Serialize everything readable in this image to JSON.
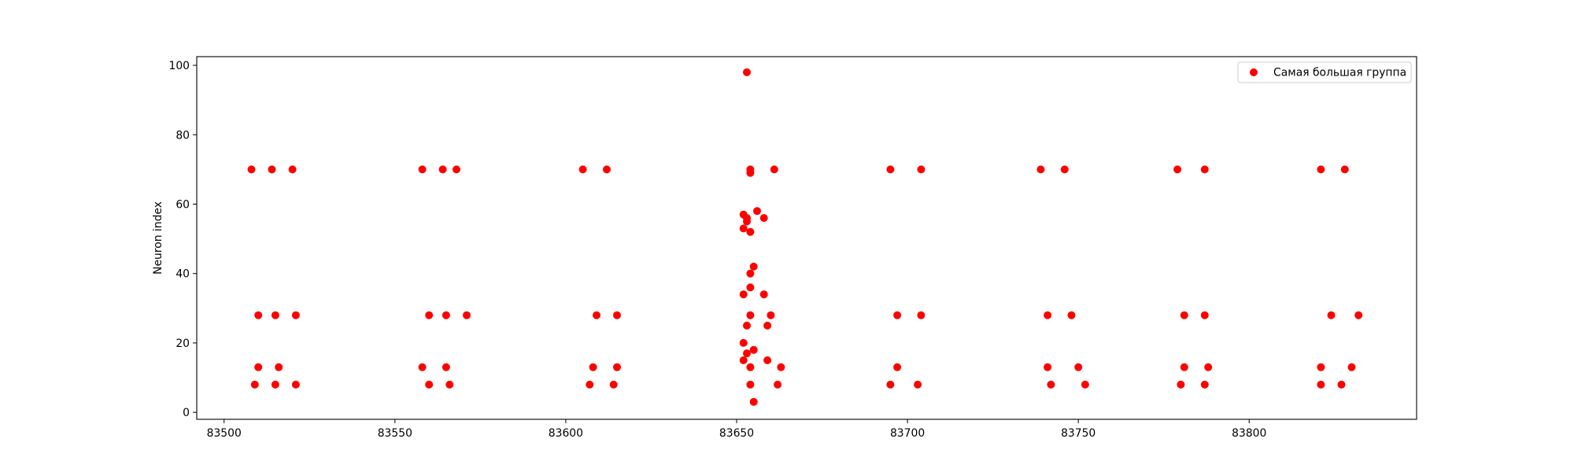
{
  "chart_data": {
    "type": "scatter",
    "title": "",
    "xlabel": "",
    "ylabel": "Neuron index",
    "xlim": [
      83492,
      83849
    ],
    "ylim": [
      -2,
      102.5
    ],
    "xticks": [
      83500,
      83550,
      83600,
      83650,
      83700,
      83750,
      83800
    ],
    "xtick_labels": [
      "83500",
      "83550",
      "83600",
      "83650",
      "83700",
      "83750",
      "83800"
    ],
    "yticks": [
      0,
      20,
      40,
      60,
      80,
      100
    ],
    "ytick_labels": [
      "0",
      "20",
      "40",
      "60",
      "80",
      "100"
    ],
    "grid": false,
    "legend": {
      "position": "top-right"
    },
    "series": [
      {
        "name": "Самая большая группа",
        "color": "#ff0000",
        "points": [
          [
            83508,
            70
          ],
          [
            83514,
            70
          ],
          [
            83520,
            70
          ],
          [
            83510,
            28
          ],
          [
            83515,
            28
          ],
          [
            83521,
            28
          ],
          [
            83510,
            13
          ],
          [
            83516,
            13
          ],
          [
            83509,
            8
          ],
          [
            83515,
            8
          ],
          [
            83521,
            8
          ],
          [
            83558,
            70
          ],
          [
            83564,
            70
          ],
          [
            83568,
            70
          ],
          [
            83560,
            28
          ],
          [
            83565,
            28
          ],
          [
            83571,
            28
          ],
          [
            83558,
            13
          ],
          [
            83565,
            13
          ],
          [
            83560,
            8
          ],
          [
            83566,
            8
          ],
          [
            83605,
            70
          ],
          [
            83612,
            70
          ],
          [
            83609,
            28
          ],
          [
            83615,
            28
          ],
          [
            83608,
            13
          ],
          [
            83615,
            13
          ],
          [
            83607,
            8
          ],
          [
            83614,
            8
          ],
          [
            83653,
            98
          ],
          [
            83654,
            70
          ],
          [
            83654,
            69
          ],
          [
            83661,
            70
          ],
          [
            83656,
            58
          ],
          [
            83652,
            57
          ],
          [
            83653,
            56
          ],
          [
            83658,
            56
          ],
          [
            83653,
            55
          ],
          [
            83652,
            53
          ],
          [
            83654,
            52
          ],
          [
            83655,
            42
          ],
          [
            83654,
            40
          ],
          [
            83654,
            36
          ],
          [
            83652,
            34
          ],
          [
            83658,
            34
          ],
          [
            83654,
            28
          ],
          [
            83660,
            28
          ],
          [
            83653,
            25
          ],
          [
            83659,
            25
          ],
          [
            83652,
            20
          ],
          [
            83655,
            18
          ],
          [
            83653,
            17
          ],
          [
            83652,
            15
          ],
          [
            83659,
            15
          ],
          [
            83654,
            13
          ],
          [
            83663,
            13
          ],
          [
            83654,
            8
          ],
          [
            83662,
            8
          ],
          [
            83655,
            3
          ],
          [
            83695,
            70
          ],
          [
            83704,
            70
          ],
          [
            83697,
            28
          ],
          [
            83704,
            28
          ],
          [
            83697,
            13
          ],
          [
            83695,
            8
          ],
          [
            83703,
            8
          ],
          [
            83739,
            70
          ],
          [
            83746,
            70
          ],
          [
            83741,
            28
          ],
          [
            83748,
            28
          ],
          [
            83741,
            13
          ],
          [
            83750,
            13
          ],
          [
            83742,
            8
          ],
          [
            83752,
            8
          ],
          [
            83779,
            70
          ],
          [
            83787,
            70
          ],
          [
            83781,
            28
          ],
          [
            83787,
            28
          ],
          [
            83781,
            13
          ],
          [
            83788,
            13
          ],
          [
            83780,
            8
          ],
          [
            83787,
            8
          ],
          [
            83821,
            70
          ],
          [
            83828,
            70
          ],
          [
            83824,
            28
          ],
          [
            83832,
            28
          ],
          [
            83821,
            13
          ],
          [
            83830,
            13
          ],
          [
            83821,
            8
          ],
          [
            83827,
            8
          ]
        ]
      }
    ]
  }
}
